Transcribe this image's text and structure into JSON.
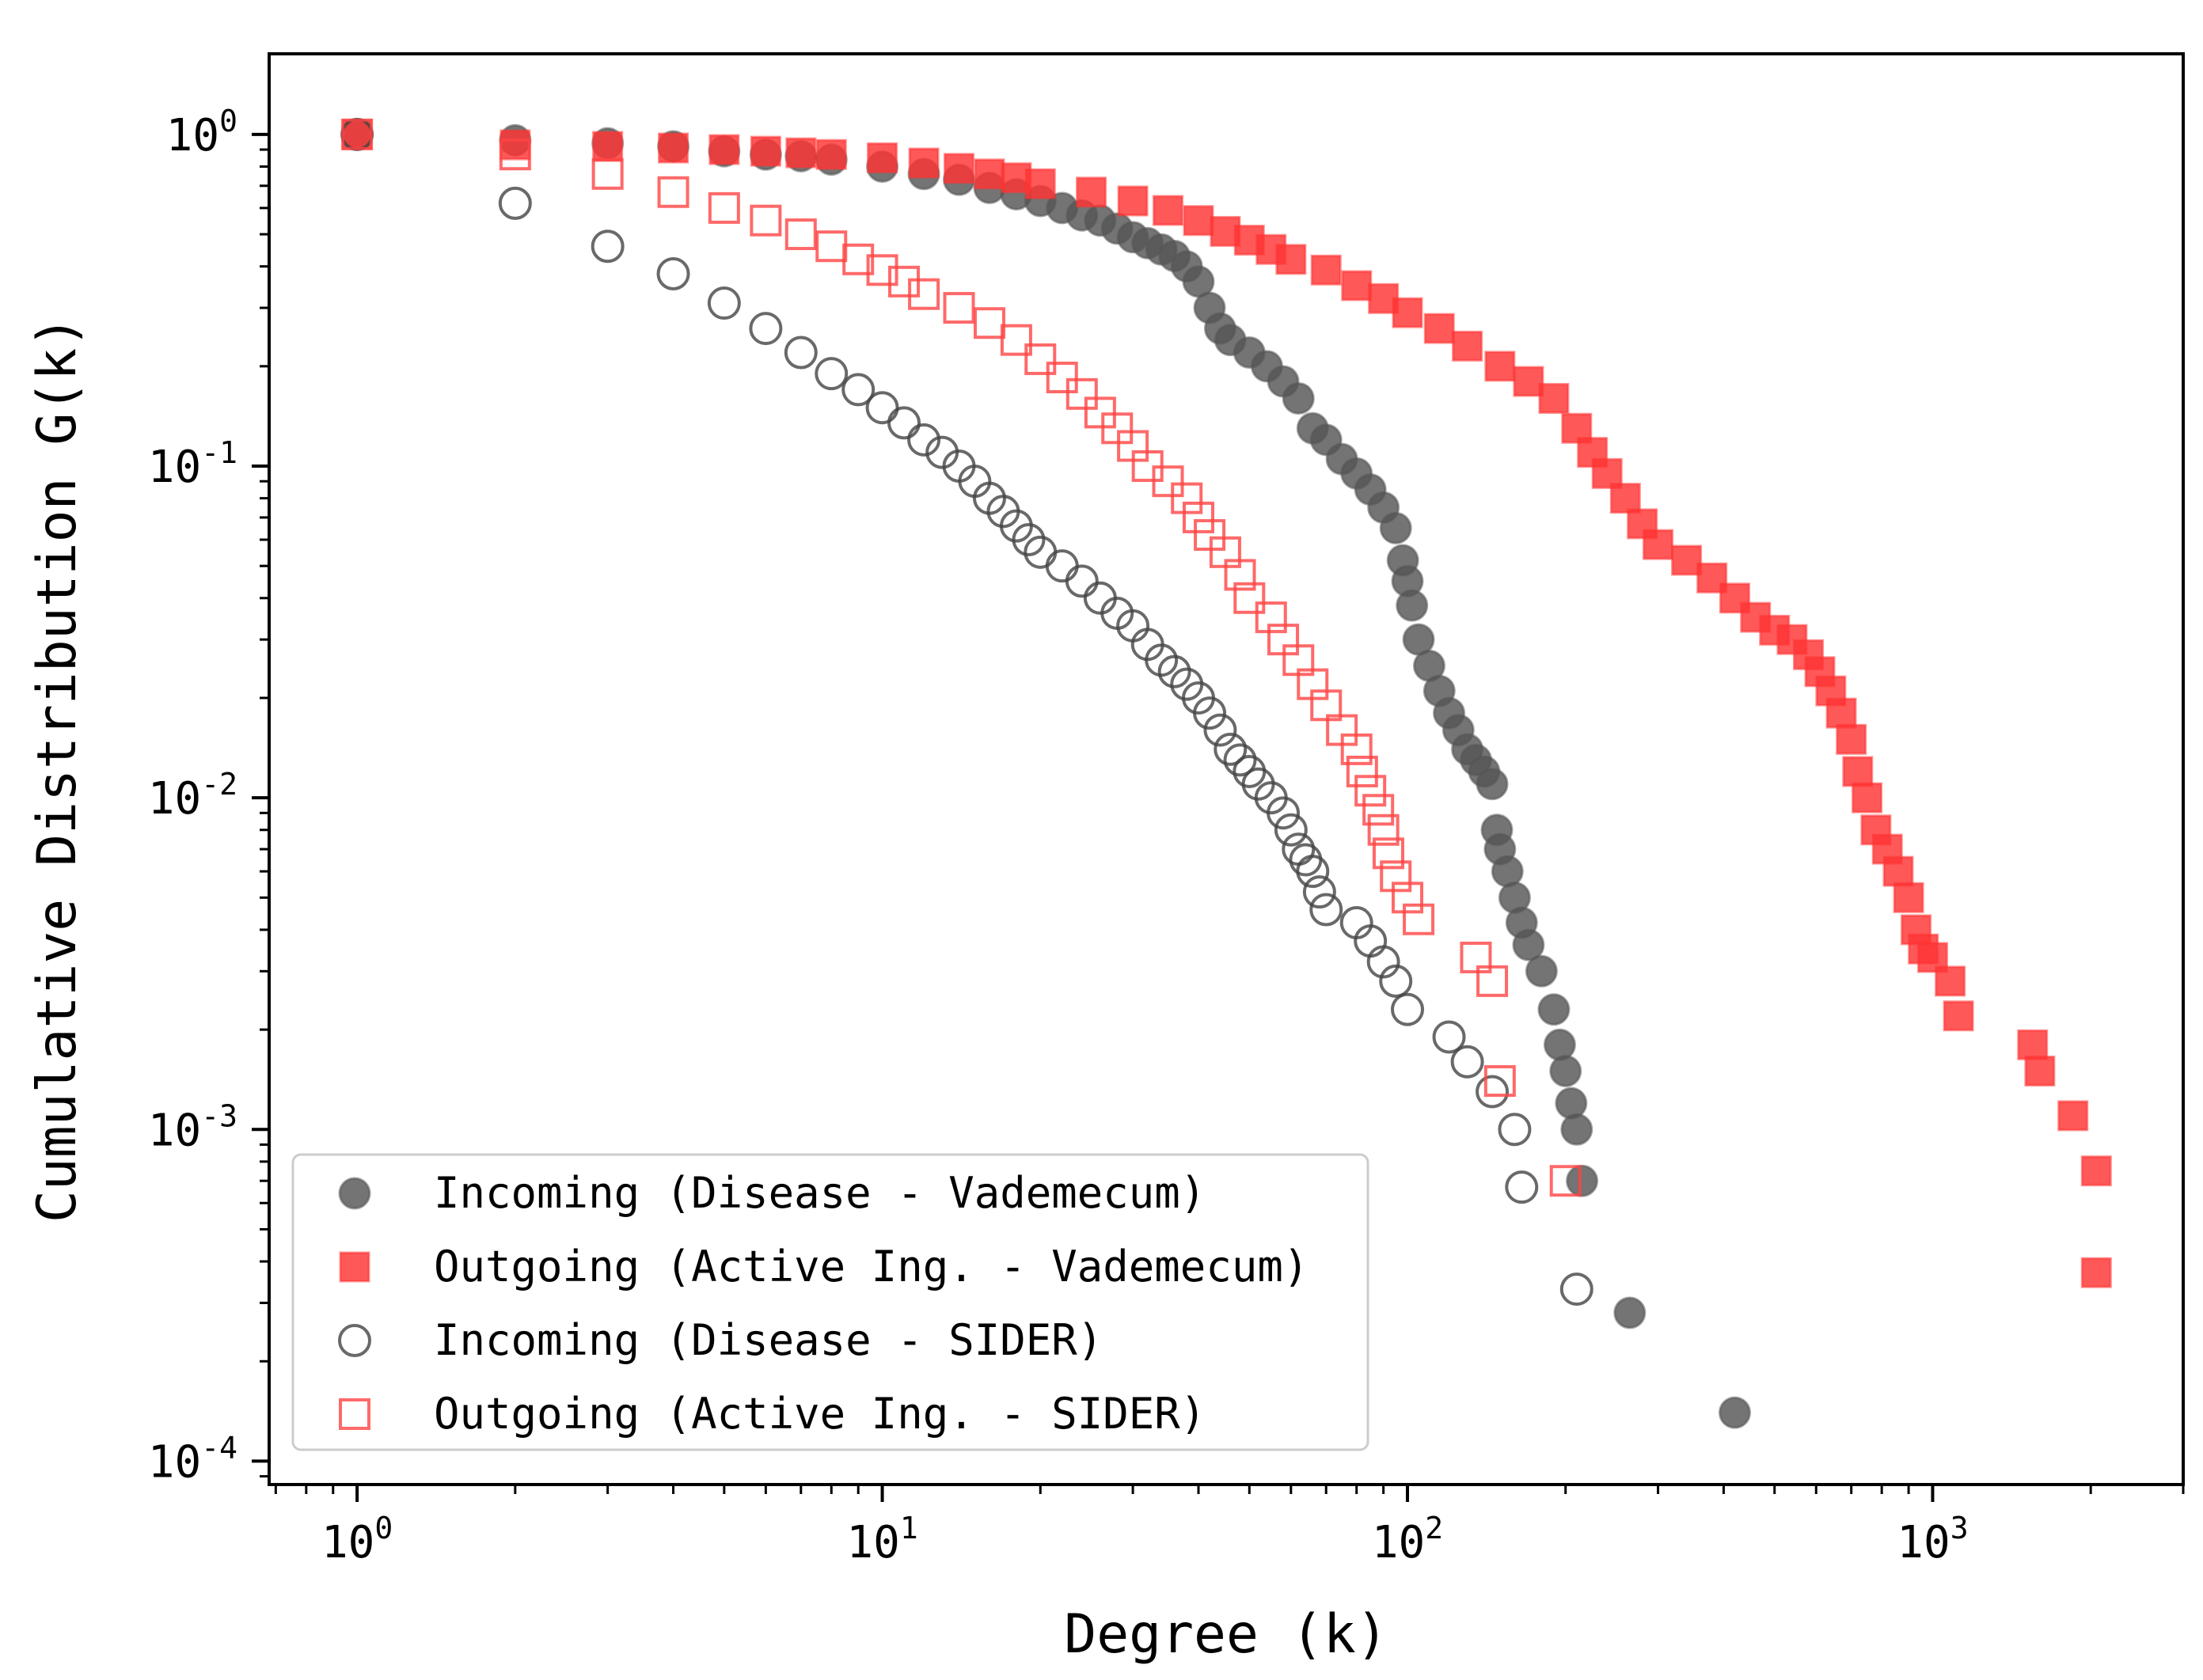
{
  "chart_data": {
    "type": "scatter",
    "title": "",
    "xlabel": "Degree (k)",
    "ylabel": "Cumulative Distribution G(k)",
    "xscale": "log",
    "yscale": "log",
    "xlim": [
      0.68,
      3000
    ],
    "ylim": [
      8.5e-05,
      1.75
    ],
    "x_ticks": [
      {
        "base": "10",
        "exp": "0"
      },
      {
        "base": "10",
        "exp": "1"
      },
      {
        "base": "10",
        "exp": "2"
      },
      {
        "base": "10",
        "exp": "3"
      }
    ],
    "y_ticks": [
      {
        "base": "10",
        "exp": "0"
      },
      {
        "base": "10",
        "exp": "-1"
      },
      {
        "base": "10",
        "exp": "-2"
      },
      {
        "base": "10",
        "exp": "-3"
      },
      {
        "base": "10",
        "exp": "-4"
      }
    ],
    "legend_position": "lower-left",
    "series": [
      {
        "name": "Incoming (Disease - Vademecum)",
        "marker": "circle-filled",
        "color": "#555555",
        "points": [
          [
            1,
            1.0
          ],
          [
            2,
            0.96
          ],
          [
            3,
            0.94
          ],
          [
            4,
            0.92
          ],
          [
            5,
            0.89
          ],
          [
            6,
            0.87
          ],
          [
            7,
            0.86
          ],
          [
            8,
            0.84
          ],
          [
            10,
            0.8
          ],
          [
            12,
            0.76
          ],
          [
            14,
            0.73
          ],
          [
            16,
            0.69
          ],
          [
            18,
            0.66
          ],
          [
            20,
            0.63
          ],
          [
            22,
            0.6
          ],
          [
            24,
            0.57
          ],
          [
            26,
            0.55
          ],
          [
            28,
            0.52
          ],
          [
            30,
            0.49
          ],
          [
            32,
            0.47
          ],
          [
            34,
            0.45
          ],
          [
            36,
            0.43
          ],
          [
            38,
            0.4
          ],
          [
            40,
            0.36
          ],
          [
            42,
            0.3
          ],
          [
            44,
            0.26
          ],
          [
            46,
            0.24
          ],
          [
            50,
            0.22
          ],
          [
            54,
            0.2
          ],
          [
            58,
            0.18
          ],
          [
            62,
            0.16
          ],
          [
            66,
            0.13
          ],
          [
            70,
            0.12
          ],
          [
            75,
            0.105
          ],
          [
            80,
            0.095
          ],
          [
            85,
            0.085
          ],
          [
            90,
            0.075
          ],
          [
            95,
            0.065
          ],
          [
            98,
            0.052
          ],
          [
            100,
            0.045
          ],
          [
            102,
            0.038
          ],
          [
            105,
            0.03
          ],
          [
            110,
            0.025
          ],
          [
            115,
            0.021
          ],
          [
            120,
            0.018
          ],
          [
            125,
            0.016
          ],
          [
            130,
            0.014
          ],
          [
            135,
            0.013
          ],
          [
            140,
            0.012
          ],
          [
            145,
            0.011
          ],
          [
            148,
            0.008
          ],
          [
            150,
            0.007
          ],
          [
            155,
            0.006
          ],
          [
            160,
            0.005
          ],
          [
            165,
            0.0042
          ],
          [
            170,
            0.0036
          ],
          [
            180,
            0.003
          ],
          [
            190,
            0.0023
          ],
          [
            195,
            0.0018
          ],
          [
            200,
            0.0015
          ],
          [
            205,
            0.0012
          ],
          [
            210,
            0.001
          ],
          [
            215,
            0.0007
          ],
          [
            265,
            0.00028
          ],
          [
            420,
            0.00014
          ]
        ]
      },
      {
        "name": "Outgoing (Active Ing. - Vademecum)",
        "marker": "square-filled",
        "color": "#ff3333",
        "points": [
          [
            1,
            1.0
          ],
          [
            2,
            0.93
          ],
          [
            3,
            0.92
          ],
          [
            4,
            0.91
          ],
          [
            5,
            0.9
          ],
          [
            6,
            0.89
          ],
          [
            7,
            0.88
          ],
          [
            8,
            0.87
          ],
          [
            10,
            0.85
          ],
          [
            12,
            0.82
          ],
          [
            14,
            0.79
          ],
          [
            16,
            0.76
          ],
          [
            18,
            0.74
          ],
          [
            20,
            0.71
          ],
          [
            25,
            0.67
          ],
          [
            30,
            0.63
          ],
          [
            35,
            0.59
          ],
          [
            40,
            0.55
          ],
          [
            45,
            0.51
          ],
          [
            50,
            0.48
          ],
          [
            55,
            0.45
          ],
          [
            60,
            0.42
          ],
          [
            70,
            0.39
          ],
          [
            80,
            0.35
          ],
          [
            90,
            0.32
          ],
          [
            100,
            0.29
          ],
          [
            115,
            0.26
          ],
          [
            130,
            0.23
          ],
          [
            150,
            0.2
          ],
          [
            170,
            0.18
          ],
          [
            190,
            0.16
          ],
          [
            210,
            0.13
          ],
          [
            225,
            0.11
          ],
          [
            240,
            0.095
          ],
          [
            260,
            0.08
          ],
          [
            280,
            0.067
          ],
          [
            300,
            0.058
          ],
          [
            340,
            0.052
          ],
          [
            380,
            0.046
          ],
          [
            420,
            0.04
          ],
          [
            460,
            0.035
          ],
          [
            500,
            0.032
          ],
          [
            540,
            0.03
          ],
          [
            580,
            0.027
          ],
          [
            610,
            0.024
          ],
          [
            640,
            0.021
          ],
          [
            670,
            0.018
          ],
          [
            700,
            0.015
          ],
          [
            720,
            0.012
          ],
          [
            750,
            0.01
          ],
          [
            780,
            0.008
          ],
          [
            820,
            0.007
          ],
          [
            860,
            0.006
          ],
          [
            900,
            0.005
          ],
          [
            930,
            0.004
          ],
          [
            960,
            0.0035
          ],
          [
            1000,
            0.0033
          ],
          [
            1080,
            0.0028
          ],
          [
            1120,
            0.0022
          ],
          [
            1550,
            0.0018
          ],
          [
            1600,
            0.0015
          ],
          [
            1850,
            0.0011
          ],
          [
            2050,
            0.00075
          ],
          [
            2050,
            0.00037
          ]
        ]
      },
      {
        "name": "Incoming (Disease - SIDER)",
        "marker": "circle-open",
        "color": "#444444",
        "points": [
          [
            1,
            1.0
          ],
          [
            2,
            0.62
          ],
          [
            3,
            0.46
          ],
          [
            4,
            0.38
          ],
          [
            5,
            0.31
          ],
          [
            6,
            0.26
          ],
          [
            7,
            0.22
          ],
          [
            8,
            0.19
          ],
          [
            9,
            0.17
          ],
          [
            10,
            0.15
          ],
          [
            11,
            0.135
          ],
          [
            12,
            0.12
          ],
          [
            13,
            0.11
          ],
          [
            14,
            0.1
          ],
          [
            15,
            0.09
          ],
          [
            16,
            0.08
          ],
          [
            17,
            0.073
          ],
          [
            18,
            0.066
          ],
          [
            19,
            0.06
          ],
          [
            20,
            0.055
          ],
          [
            22,
            0.05
          ],
          [
            24,
            0.045
          ],
          [
            26,
            0.04
          ],
          [
            28,
            0.036
          ],
          [
            30,
            0.033
          ],
          [
            32,
            0.029
          ],
          [
            34,
            0.026
          ],
          [
            36,
            0.024
          ],
          [
            38,
            0.022
          ],
          [
            40,
            0.02
          ],
          [
            42,
            0.018
          ],
          [
            44,
            0.016
          ],
          [
            46,
            0.014
          ],
          [
            48,
            0.013
          ],
          [
            50,
            0.012
          ],
          [
            52,
            0.011
          ],
          [
            55,
            0.01
          ],
          [
            58,
            0.009
          ],
          [
            60,
            0.008
          ],
          [
            62,
            0.007
          ],
          [
            64,
            0.0065
          ],
          [
            66,
            0.006
          ],
          [
            68,
            0.0052
          ],
          [
            70,
            0.0046
          ],
          [
            80,
            0.0042
          ],
          [
            85,
            0.0037
          ],
          [
            90,
            0.0032
          ],
          [
            95,
            0.0028
          ],
          [
            100,
            0.0023
          ],
          [
            120,
            0.0019
          ],
          [
            130,
            0.0016
          ],
          [
            145,
            0.0013
          ],
          [
            160,
            0.001
          ],
          [
            165,
            0.00067
          ],
          [
            210,
            0.00033
          ]
        ]
      },
      {
        "name": "Outgoing (Active Ing. - SIDER)",
        "marker": "square-open",
        "color": "#ff4444",
        "points": [
          [
            1,
            1.0
          ],
          [
            2,
            0.87
          ],
          [
            3,
            0.76
          ],
          [
            4,
            0.67
          ],
          [
            5,
            0.6
          ],
          [
            6,
            0.55
          ],
          [
            7,
            0.5
          ],
          [
            8,
            0.46
          ],
          [
            9,
            0.42
          ],
          [
            10,
            0.39
          ],
          [
            11,
            0.36
          ],
          [
            12,
            0.33
          ],
          [
            14,
            0.3
          ],
          [
            16,
            0.27
          ],
          [
            18,
            0.24
          ],
          [
            20,
            0.21
          ],
          [
            22,
            0.185
          ],
          [
            24,
            0.165
          ],
          [
            26,
            0.145
          ],
          [
            28,
            0.13
          ],
          [
            30,
            0.115
          ],
          [
            32,
            0.1
          ],
          [
            35,
            0.09
          ],
          [
            38,
            0.08
          ],
          [
            40,
            0.07
          ],
          [
            42,
            0.062
          ],
          [
            45,
            0.055
          ],
          [
            48,
            0.047
          ],
          [
            50,
            0.04
          ],
          [
            55,
            0.035
          ],
          [
            58,
            0.03
          ],
          [
            62,
            0.026
          ],
          [
            66,
            0.022
          ],
          [
            70,
            0.019
          ],
          [
            75,
            0.016
          ],
          [
            80,
            0.014
          ],
          [
            82,
            0.012
          ],
          [
            85,
            0.0105
          ],
          [
            88,
            0.0092
          ],
          [
            90,
            0.008
          ],
          [
            92,
            0.0068
          ],
          [
            95,
            0.0058
          ],
          [
            100,
            0.005
          ],
          [
            105,
            0.0043
          ],
          [
            135,
            0.0033
          ],
          [
            145,
            0.0028
          ],
          [
            150,
            0.0014
          ],
          [
            200,
            0.0007
          ]
        ]
      }
    ]
  }
}
